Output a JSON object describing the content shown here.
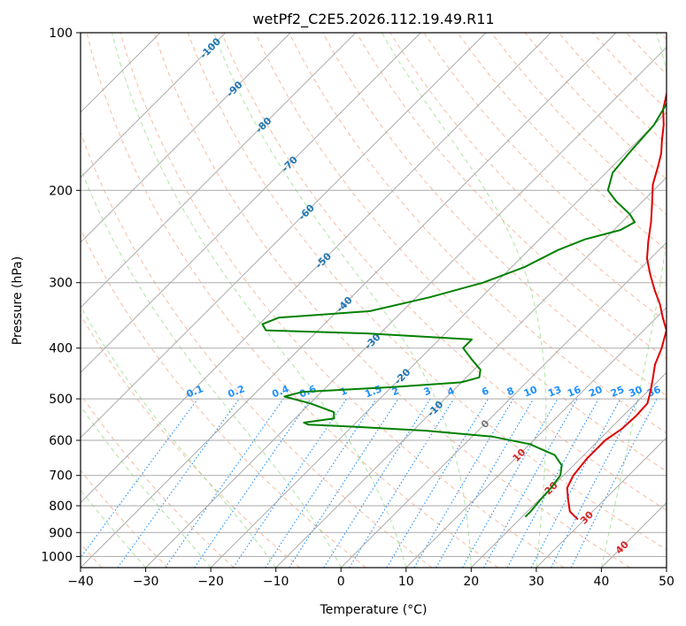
{
  "chart_data": {
    "type": "line",
    "title": "wetPf2_C2E5.2026.112.19.49.R11",
    "xlabel": "Temperature (°C)",
    "ylabel": "Pressure (hPa)",
    "xlim": [
      -40,
      50
    ],
    "ylim": [
      1050,
      100
    ],
    "y_scale": "log",
    "skew": true,
    "grid": true,
    "x_ticks": [
      -40,
      -30,
      -20,
      -10,
      0,
      10,
      20,
      30,
      40,
      50
    ],
    "y_ticks": [
      100,
      200,
      300,
      400,
      500,
      600,
      700,
      800,
      900,
      1000
    ],
    "isotherm_labels": [
      "-100",
      "-90",
      "-80",
      "-70",
      "-60",
      "-50",
      "-40",
      "-30",
      "-20",
      "-10",
      "0",
      "10",
      "20",
      "30",
      "40"
    ],
    "mixing_ratio_labels": [
      "0.1",
      "0.2",
      "0.4",
      "0.6",
      "1",
      "1.5",
      "2",
      "3",
      "4",
      "6",
      "8",
      "10",
      "13",
      "16",
      "20",
      "25",
      "30",
      "36"
    ],
    "colors": {
      "temperature": "#e00000",
      "dewpoint": "#008000",
      "isotherm_label": "#1f77b4",
      "positive_isotherm_label": "#d62728",
      "mixing_ratio": "#1e90ff",
      "dry_adiabat": "#f4a582",
      "moist_adiabat": "#98df8a",
      "grid": "#aaaaaa"
    },
    "series": [
      {
        "name": "Temperature",
        "points": [
          [
            850,
            29
          ],
          [
            820,
            26.5
          ],
          [
            780,
            24.5
          ],
          [
            740,
            22.5
          ],
          [
            700,
            21.5
          ],
          [
            650,
            21
          ],
          [
            600,
            21
          ],
          [
            570,
            21.8
          ],
          [
            540,
            22
          ],
          [
            510,
            21.8
          ],
          [
            485,
            20.5
          ],
          [
            460,
            19
          ],
          [
            430,
            17
          ],
          [
            400,
            15.5
          ],
          [
            370,
            13.5
          ],
          [
            350,
            11
          ],
          [
            330,
            8.5
          ],
          [
            310,
            5.5
          ],
          [
            290,
            2.5
          ],
          [
            270,
            -0.5
          ],
          [
            250,
            -3
          ],
          [
            230,
            -5.5
          ],
          [
            210,
            -8.5
          ],
          [
            195,
            -11
          ],
          [
            180,
            -13
          ],
          [
            170,
            -14.5
          ],
          [
            160,
            -16.5
          ],
          [
            150,
            -18.5
          ],
          [
            140,
            -21
          ],
          [
            130,
            -23
          ],
          [
            120,
            -24
          ],
          [
            110,
            -23.5
          ],
          [
            100,
            -22
          ]
        ]
      },
      {
        "name": "Dewpoint",
        "points": [
          [
            840,
            20.5
          ],
          [
            820,
            20.5
          ],
          [
            780,
            20.2
          ],
          [
            740,
            20
          ],
          [
            700,
            19.5
          ],
          [
            670,
            18.2
          ],
          [
            640,
            15.5
          ],
          [
            610,
            10
          ],
          [
            590,
            3
          ],
          [
            575,
            -8
          ],
          [
            565,
            -20
          ],
          [
            560,
            -27
          ],
          [
            555,
            -28
          ],
          [
            545,
            -24
          ],
          [
            530,
            -25
          ],
          [
            510,
            -30
          ],
          [
            495,
            -35
          ],
          [
            485,
            -33
          ],
          [
            475,
            -20
          ],
          [
            465,
            -10
          ],
          [
            455,
            -8
          ],
          [
            440,
            -9
          ],
          [
            420,
            -12
          ],
          [
            400,
            -15
          ],
          [
            385,
            -15
          ],
          [
            375,
            -32
          ],
          [
            370,
            -48
          ],
          [
            360,
            -49.5
          ],
          [
            350,
            -48
          ],
          [
            340,
            -35
          ],
          [
            320,
            -28
          ],
          [
            300,
            -22
          ],
          [
            280,
            -18
          ],
          [
            260,
            -15.5
          ],
          [
            248,
            -13
          ],
          [
            238,
            -9
          ],
          [
            230,
            -8
          ],
          [
            222,
            -10
          ],
          [
            210,
            -14
          ],
          [
            200,
            -17
          ],
          [
            185,
            -19
          ],
          [
            170,
            -19.5
          ],
          [
            150,
            -20
          ],
          [
            135,
            -21.5
          ],
          [
            120,
            -24.5
          ],
          [
            110,
            -25
          ],
          [
            100,
            -25
          ]
        ]
      }
    ]
  }
}
